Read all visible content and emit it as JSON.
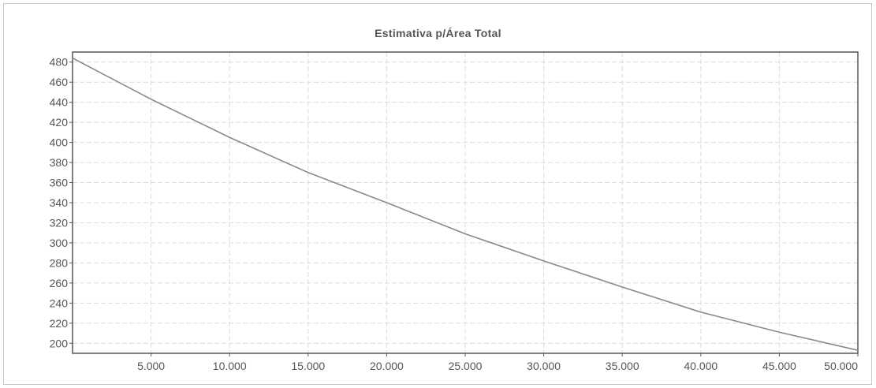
{
  "chart_data": {
    "type": "line",
    "title": "Estimativa p/Área Total",
    "xlabel": "",
    "ylabel": "",
    "xlim": [
      0,
      50000
    ],
    "ylim": [
      190,
      490
    ],
    "grid": true,
    "x_ticks": [
      5000,
      10000,
      15000,
      20000,
      25000,
      30000,
      35000,
      40000,
      45000,
      50000
    ],
    "x_tick_labels": [
      "5.000",
      "10.000",
      "15.000",
      "20.000",
      "25.000",
      "30.000",
      "35.000",
      "40.000",
      "45.000",
      "50.000"
    ],
    "y_ticks": [
      200,
      220,
      240,
      260,
      280,
      300,
      320,
      340,
      360,
      380,
      400,
      420,
      440,
      460,
      480
    ],
    "y_tick_labels": [
      "200",
      "220",
      "240",
      "260",
      "280",
      "300",
      "320",
      "340",
      "360",
      "380",
      "400",
      "420",
      "440",
      "460",
      "480"
    ],
    "series": [
      {
        "color": "#8a8a8a",
        "x": [
          0,
          5000,
          10000,
          15000,
          20000,
          25000,
          30000,
          35000,
          40000,
          45000,
          50000
        ],
        "y": [
          484,
          443,
          405,
          370,
          340,
          309,
          282,
          256,
          231,
          211,
          193
        ]
      }
    ]
  },
  "colors": {
    "axis": "#555555",
    "grid": "#dcdcdc",
    "line": "#8a8a8a",
    "text": "#555555"
  }
}
